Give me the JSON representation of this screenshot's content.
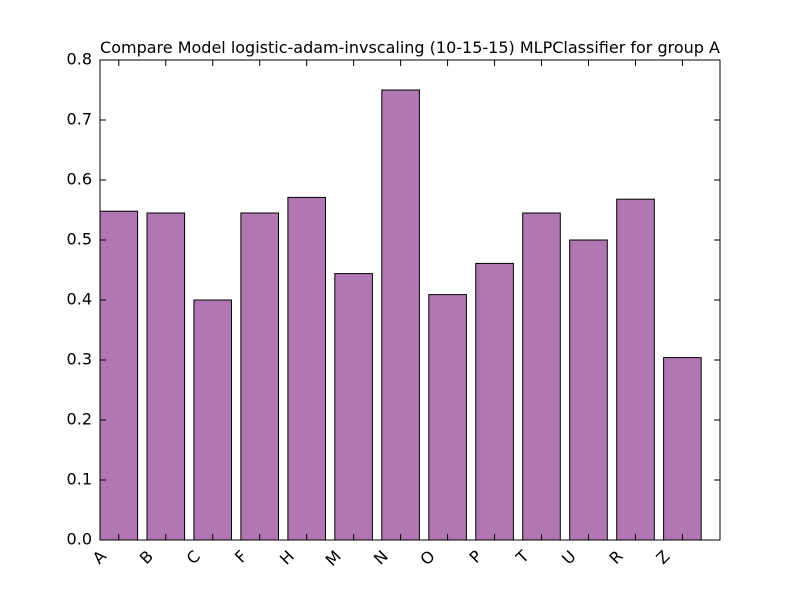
{
  "chart_data": {
    "type": "bar",
    "title": "Compare Model logistic-adam-invscaling (10-15-15) MLPClassifier for group A",
    "xlabel": "",
    "ylabel": "",
    "categories": [
      "A",
      "B",
      "C",
      "F",
      "H",
      "M",
      "N",
      "O",
      "P",
      "T",
      "U",
      "R",
      "Z"
    ],
    "values": [
      0.548,
      0.545,
      0.4,
      0.545,
      0.571,
      0.444,
      0.75,
      0.409,
      0.461,
      0.545,
      0.5,
      0.568,
      0.304
    ],
    "ylim": [
      0,
      0.8
    ],
    "yticks": [
      "0.0",
      "0.1",
      "0.2",
      "0.3",
      "0.4",
      "0.5",
      "0.6",
      "0.7",
      "0.8"
    ],
    "grid": false,
    "bar_color": "#b077b3",
    "edge_color": "#000000"
  }
}
